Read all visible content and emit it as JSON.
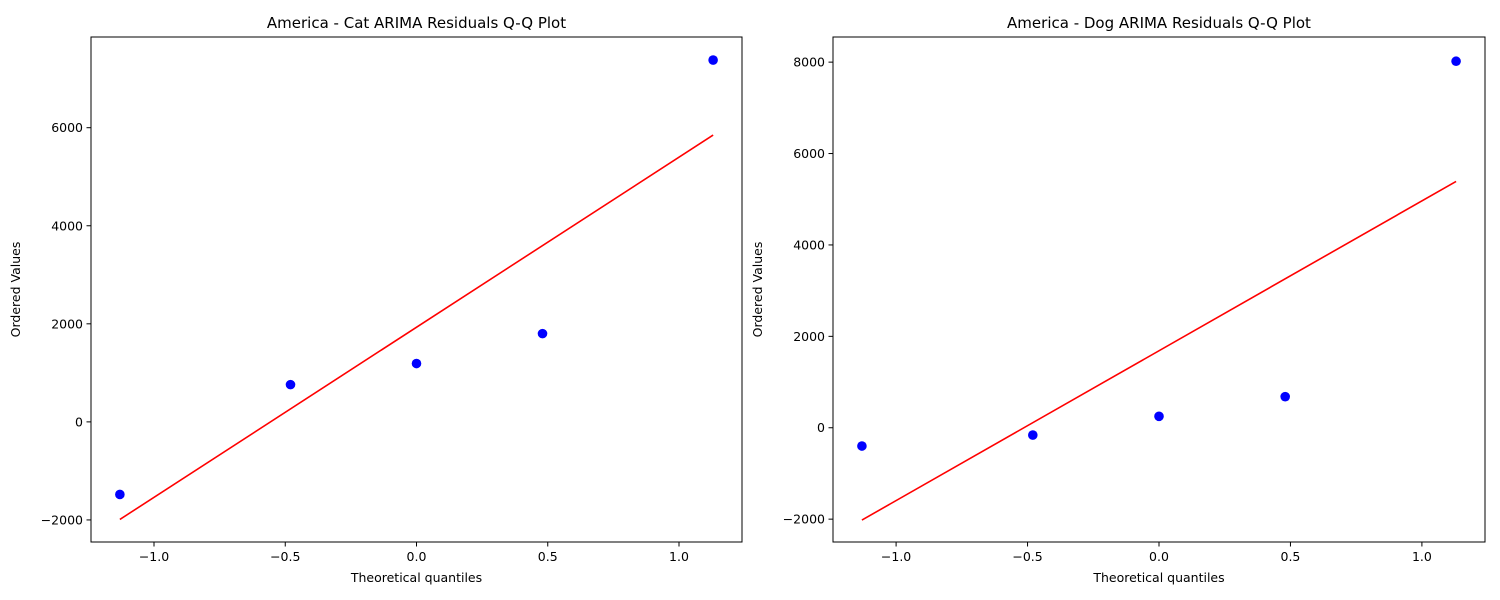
{
  "chart_data": [
    {
      "type": "scatter",
      "title": "America - Cat ARIMA Residuals Q-Q Plot",
      "xlabel": "Theoretical quantiles",
      "ylabel": "Ordered Values",
      "xlim": [
        -1.24,
        1.24
      ],
      "ylim": [
        -2450,
        7850
      ],
      "xticks": [
        -1.0,
        -0.5,
        0.0,
        0.5,
        1.0
      ],
      "xtick_labels": [
        "−1.0",
        "−0.5",
        "0.0",
        "0.5",
        "1.0"
      ],
      "yticks": [
        -2000,
        0,
        2000,
        4000,
        6000
      ],
      "ytick_labels": [
        "−2000",
        "0",
        "2000",
        "4000",
        "6000"
      ],
      "grid": false,
      "points": {
        "x": [
          -1.13,
          -0.48,
          0.0,
          0.48,
          1.13
        ],
        "y": [
          -1480,
          760,
          1190,
          1800,
          7380
        ],
        "color": "#0000ff"
      },
      "fit_line": {
        "x": [
          -1.13,
          1.13
        ],
        "y": [
          -1990,
          5850
        ],
        "color": "#ff0000"
      }
    },
    {
      "type": "scatter",
      "title": "America - Dog ARIMA Residuals Q-Q Plot",
      "xlabel": "Theoretical quantiles",
      "ylabel": "Ordered Values",
      "xlim": [
        -1.24,
        1.24
      ],
      "ylim": [
        -2500,
        8550
      ],
      "xticks": [
        -1.0,
        -0.5,
        0.0,
        0.5,
        1.0
      ],
      "xtick_labels": [
        "−1.0",
        "−0.5",
        "0.0",
        "0.5",
        "1.0"
      ],
      "yticks": [
        -2000,
        0,
        2000,
        4000,
        6000,
        8000
      ],
      "ytick_labels": [
        "−2000",
        "0",
        "2000",
        "4000",
        "6000",
        "8000"
      ],
      "grid": false,
      "points": {
        "x": [
          -1.13,
          -0.48,
          0.0,
          0.48,
          1.13
        ],
        "y": [
          -400,
          -160,
          250,
          680,
          8020
        ],
        "color": "#0000ff"
      },
      "fit_line": {
        "x": [
          -1.13,
          1.13
        ],
        "y": [
          -2020,
          5390
        ],
        "color": "#ff0000"
      }
    }
  ]
}
